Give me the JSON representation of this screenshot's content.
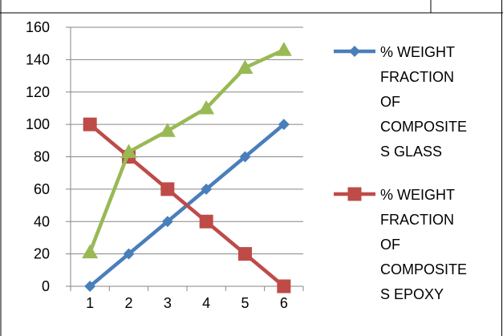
{
  "chart_data": {
    "type": "line",
    "x": [
      1,
      2,
      3,
      4,
      5,
      6
    ],
    "ylim": [
      0,
      160
    ],
    "yticks": [
      0,
      20,
      40,
      60,
      80,
      100,
      120,
      140,
      160
    ],
    "grid": "horizontal",
    "legend_position": "right",
    "title": "",
    "xlabel": "",
    "ylabel": "",
    "series": [
      {
        "name": "% WEIGHT FRACTION OF COMPOSITES GLASS",
        "legend_lines": [
          "% WEIGHT",
          "FRACTION",
          "OF",
          "COMPOSITE",
          "S GLASS"
        ],
        "color": "#4a7ebb",
        "marker": "diamond",
        "values": [
          0,
          20,
          40,
          60,
          80,
          100
        ]
      },
      {
        "name": "% WEIGHT FRACTION OF COMPOSITES EPOXY",
        "legend_lines": [
          "% WEIGHT",
          "FRACTION",
          "OF",
          "COMPOSITE",
          "S EPOXY"
        ],
        "color": "#be4b48",
        "marker": "square",
        "values": [
          100,
          80,
          60,
          40,
          20,
          0
        ]
      },
      {
        "name": "",
        "color": "#98b954",
        "marker": "triangle",
        "values": [
          21,
          83,
          96,
          110,
          135,
          146
        ]
      }
    ]
  }
}
